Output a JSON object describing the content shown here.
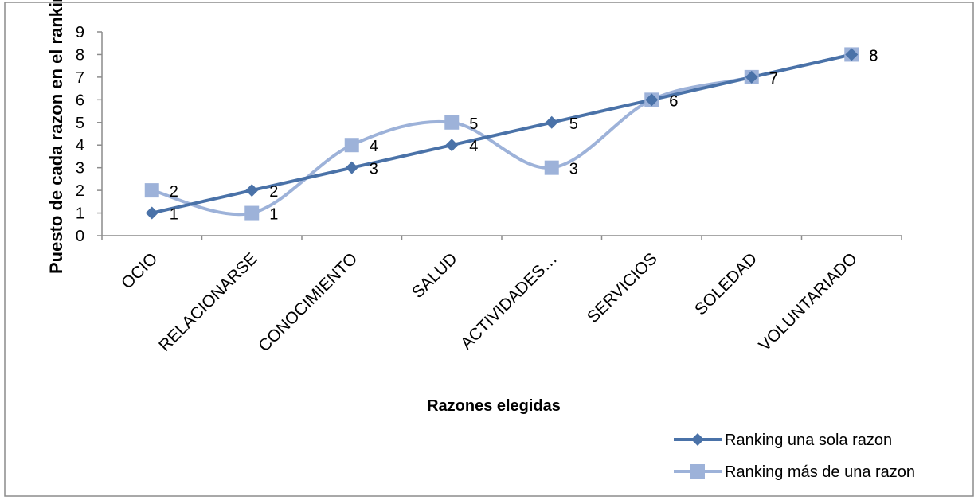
{
  "chart_data": {
    "type": "line",
    "categories": [
      "OCIO",
      "RELACIONARSE",
      "CONOCIMIENTO",
      "SALUD",
      "ACTIVIDADES…",
      "SERVICIOS",
      "SOLEDAD",
      "VOLUNTARIADO"
    ],
    "series": [
      {
        "name": "Ranking una sola razon",
        "values": [
          1,
          2,
          3,
          4,
          5,
          6,
          7,
          8
        ],
        "color": "#4A72A8",
        "marker": "diamond",
        "smooth": false
      },
      {
        "name": "Ranking más de una razon",
        "values": [
          2,
          1,
          4,
          5,
          3,
          6,
          7,
          8
        ],
        "color": "#9DB2D9",
        "marker": "square",
        "smooth": true
      }
    ],
    "title": "",
    "xlabel": "Razones elegidas",
    "ylabel": "Puesto de cada razon en el ranking",
    "ylim": [
      0,
      9
    ],
    "yticks": [
      "0",
      "1",
      "2",
      "3",
      "4",
      "5",
      "6",
      "7",
      "8",
      "9"
    ],
    "grid": false,
    "legend": "bottom-right",
    "data_labels": true
  }
}
